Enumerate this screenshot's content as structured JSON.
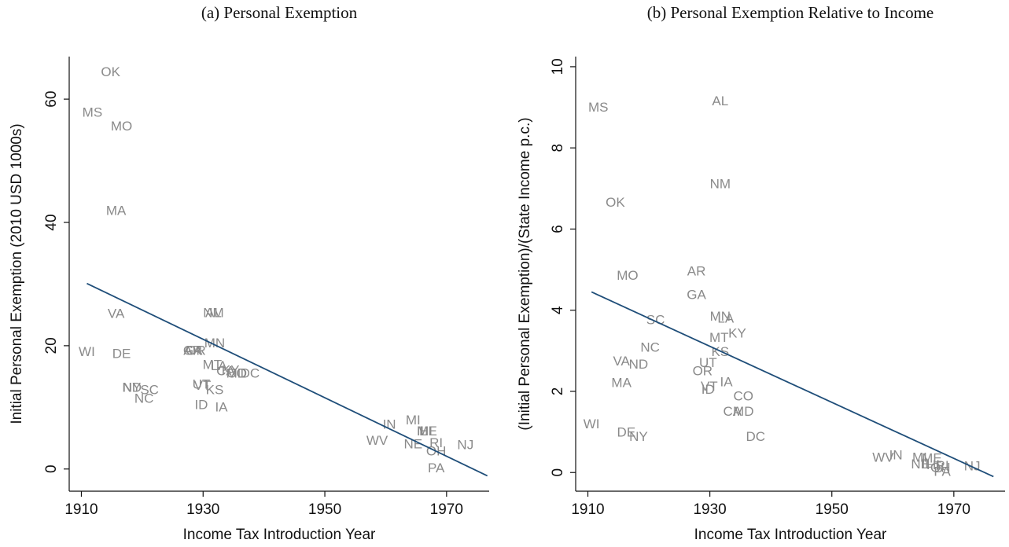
{
  "chart_data": [
    {
      "type": "scatter",
      "title": "(a) Personal Exemption",
      "x_label": "Income Tax Introduction Year",
      "y_label": "Initial Personal Exemption (2010 USD 1000s)",
      "xlim": [
        1908,
        1977
      ],
      "ylim": [
        -3.6,
        66.9
      ],
      "xticks": [
        1910,
        1930,
        1950,
        1970
      ],
      "yticks": [
        0,
        20,
        40,
        60
      ],
      "color": "#8a8a8a",
      "labels": [
        "OK",
        "MS",
        "MO",
        "MA",
        "VA",
        "WI",
        "DE",
        "NY",
        "ND",
        "SC",
        "NC",
        "AL",
        "NM",
        "MN",
        "GA",
        "AR",
        "OR",
        "MT",
        "LA",
        "KY",
        "CA",
        "CO",
        "MD",
        "DC",
        "UT",
        "VT",
        "KS",
        "ID",
        "IA",
        "IN",
        "MI",
        "ME",
        "IL",
        "HI",
        "WV",
        "NE",
        "RI",
        "NJ",
        "OH",
        "PA"
      ],
      "x": [
        1914.8,
        1911.8,
        1916.6,
        1915.7,
        1915.7,
        1910.9,
        1916.6,
        1918.3,
        1918.3,
        1921.2,
        1920.3,
        1931.7,
        1931.7,
        1931.9,
        1928.3,
        1928.3,
        1928.8,
        1931.5,
        1932.6,
        1934.5,
        1933.7,
        1935.5,
        1935.5,
        1937.7,
        1929.7,
        1929.9,
        1931.9,
        1929.7,
        1933,
        1960.6,
        1964.5,
        1966.8,
        1966,
        1966.6,
        1958.6,
        1964.5,
        1968.3,
        1973.1,
        1968.3,
        1968.3
      ],
      "y": [
        64.3,
        57.7,
        55.5,
        41.8,
        25.1,
        18.9,
        18.6,
        13.1,
        13.1,
        12.7,
        11.3,
        25.2,
        25.2,
        20.3,
        19.1,
        19.1,
        19.1,
        16.8,
        16.6,
        15.9,
        15.8,
        15.4,
        15.4,
        15.4,
        13.6,
        13.4,
        12.7,
        10.3,
        9.9,
        7.1,
        7.8,
        6.0,
        6.0,
        6.0,
        4.5,
        3.9,
        4.1,
        3.8,
        2.8,
        0
      ],
      "fit": {
        "color": "#1f4e79",
        "x": [
          1910.9,
          1976.7
        ],
        "y": [
          30.1,
          -1.1
        ]
      }
    },
    {
      "type": "scatter",
      "title": "(b) Personal Exemption Relative to Income",
      "x_label": "Income Tax Introduction Year",
      "y_label": "(Initial Personal Exemption)/(State Income p.c.)",
      "xlim": [
        1908,
        1978.4
      ],
      "ylim": [
        -0.46,
        10.25
      ],
      "xticks": [
        1910,
        1930,
        1950,
        1970
      ],
      "yticks": [
        0,
        2,
        4,
        6,
        8,
        10
      ],
      "color": "#8a8a8a",
      "labels": [
        "MS",
        "AL",
        "NM",
        "OK",
        "MO",
        "AR",
        "GA",
        "SC",
        "MN",
        "LA",
        "KY",
        "MT",
        "NC",
        "KS",
        "VA",
        "ND",
        "UT",
        "OR",
        "MA",
        "IA",
        "VT",
        "ID",
        "CO",
        "CA",
        "MD",
        "WI",
        "DE",
        "NY",
        "DC",
        "WV",
        "IN",
        "NE",
        "MI",
        "ME",
        "IL",
        "HI",
        "RI",
        "OH",
        "PA",
        "NJ"
      ],
      "x": [
        1911.7,
        1931.7,
        1931.7,
        1914.5,
        1916.5,
        1927.8,
        1927.8,
        1921.1,
        1931.7,
        1932.6,
        1934.5,
        1931.5,
        1920.2,
        1931.7,
        1915.5,
        1918.3,
        1929.7,
        1928.8,
        1915.5,
        1932.7,
        1929.9,
        1929.7,
        1935.5,
        1933.7,
        1935.5,
        1910.6,
        1916.3,
        1918.3,
        1937.5,
        1958.4,
        1960.5,
        1964.5,
        1964.4,
        1966.4,
        1965.6,
        1966.6,
        1968.1,
        1967.8,
        1968.1,
        1973
      ],
      "y": [
        8.98,
        9.14,
        7.09,
        6.64,
        4.84,
        4.94,
        4.36,
        3.74,
        3.83,
        3.78,
        3.41,
        3.31,
        3.06,
        2.96,
        2.73,
        2.65,
        2.69,
        2.48,
        2.19,
        2.21,
        2.11,
        2.03,
        1.86,
        1.49,
        1.49,
        1.18,
        0.97,
        0.87,
        0.87,
        0.35,
        0.41,
        0.19,
        0.35,
        0.33,
        0.21,
        0.17,
        0.15,
        0.1,
        0.0,
        0.14
      ],
      "fit": {
        "color": "#1f4e79",
        "x": [
          1910.6,
          1976.5
        ],
        "y": [
          4.45,
          -0.1
        ]
      }
    }
  ]
}
